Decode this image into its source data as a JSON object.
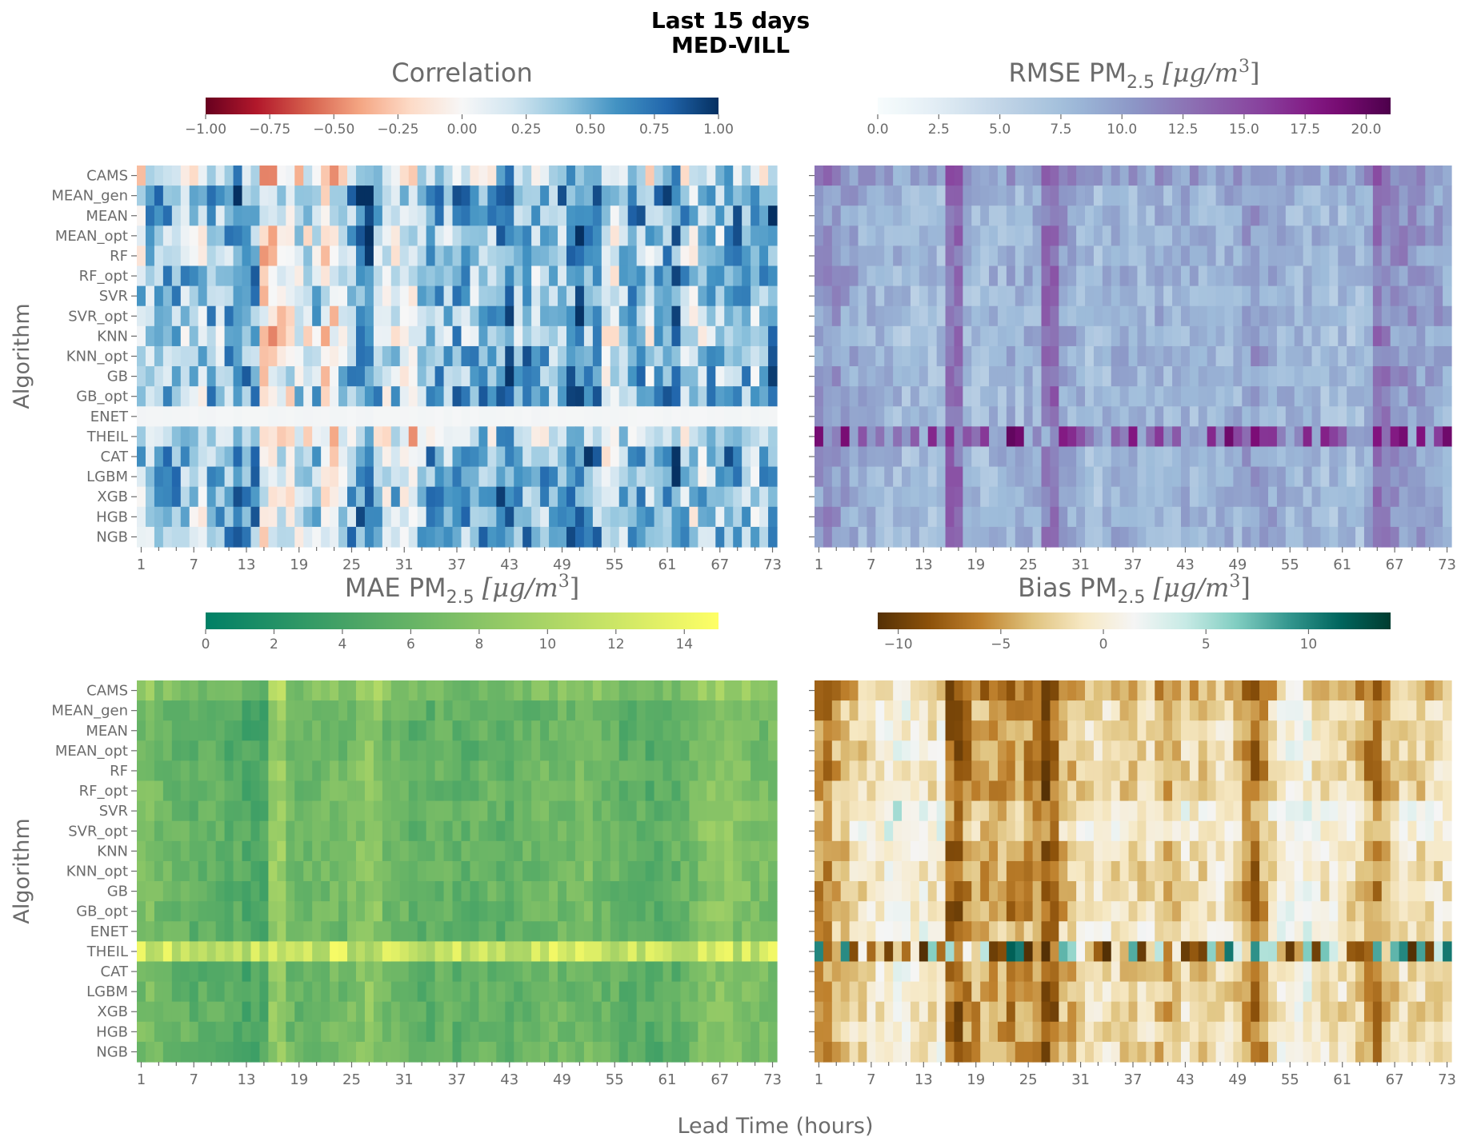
{
  "figure": {
    "title_line1": "Last 15 days",
    "title_line2": "MED-VILL",
    "xlabel": "Lead Time (hours)",
    "ylabel": "Algorithm"
  },
  "chart_data": [
    {
      "type": "heatmap",
      "title": "Correlation",
      "colormap": "RdBu",
      "colorbar_range": [
        -1.0,
        1.0
      ],
      "colorbar_ticks": [
        "−1.00",
        "−0.75",
        "−0.50",
        "−0.25",
        "0.00",
        "0.25",
        "0.50",
        "0.75",
        "1.00"
      ],
      "colorbar_tick_values": [
        -1.0,
        -0.75,
        -0.5,
        -0.25,
        0.0,
        0.25,
        0.5,
        0.75,
        1.0
      ],
      "rows": [
        "CAMS",
        "MEAN_gen",
        "MEAN",
        "MEAN_opt",
        "RF",
        "RF_opt",
        "SVR",
        "SVR_opt",
        "KNN",
        "KNN_opt",
        "GB",
        "GB_opt",
        "ENET",
        "THEIL",
        "CAT",
        "LGBM",
        "XGB",
        "HGB",
        "NGB"
      ],
      "x_ticks": [
        "1",
        "7",
        "13",
        "19",
        "25",
        "31",
        "37",
        "43",
        "49",
        "55",
        "61",
        "67",
        "73"
      ],
      "n_columns": 73,
      "row_means": [
        0.15,
        0.45,
        0.42,
        0.35,
        0.3,
        0.4,
        0.38,
        0.36,
        0.25,
        0.4,
        0.38,
        0.4,
        0.02,
        0.18,
        0.42,
        0.4,
        0.42,
        0.38,
        0.38
      ],
      "column_means": [
        0.25,
        0.35,
        0.45,
        0.4,
        0.5,
        0.35,
        0.3,
        0.2,
        0.4,
        0.35,
        0.45,
        0.65,
        0.55,
        0.5,
        -0.1,
        -0.05,
        0.0,
        0.05,
        0.2,
        0.15,
        0.3,
        -0.05,
        0.0,
        0.2,
        0.45,
        0.6,
        0.7,
        0.35,
        0.2,
        0.25,
        0.15,
        0.05,
        0.3,
        0.45,
        0.4,
        0.3,
        0.55,
        0.45,
        0.35,
        0.5,
        0.4,
        0.55,
        0.65,
        0.4,
        0.5,
        0.3,
        0.4,
        0.35,
        0.45,
        0.55,
        0.7,
        0.6,
        0.5,
        0.1,
        0.05,
        0.4,
        0.45,
        0.5,
        0.3,
        0.4,
        0.55,
        0.65,
        0.35,
        0.2,
        0.25,
        0.4,
        0.35,
        0.5,
        0.55,
        0.4,
        0.3,
        0.35,
        0.6
      ]
    },
    {
      "type": "heatmap",
      "title_main": "RMSE PM",
      "title_sub": "2.5",
      "title_unit": "μg/m",
      "title_exp": "3",
      "colormap": "BuPu",
      "colorbar_range": [
        0.0,
        21.0
      ],
      "colorbar_ticks": [
        "0.0",
        "2.5",
        "5.0",
        "7.5",
        "10.0",
        "12.5",
        "15.0",
        "17.5",
        "20.0"
      ],
      "colorbar_tick_values": [
        0.0,
        2.5,
        5.0,
        7.5,
        10.0,
        12.5,
        15.0,
        17.5,
        20.0
      ],
      "rows": [
        "CAMS",
        "MEAN_gen",
        "MEAN",
        "MEAN_opt",
        "RF",
        "RF_opt",
        "SVR",
        "SVR_opt",
        "KNN",
        "KNN_opt",
        "GB",
        "GB_opt",
        "ENET",
        "THEIL",
        "CAT",
        "LGBM",
        "XGB",
        "HGB",
        "NGB"
      ],
      "x_ticks": [
        "1",
        "7",
        "13",
        "19",
        "25",
        "31",
        "37",
        "43",
        "49",
        "55",
        "61",
        "67",
        "73"
      ],
      "n_columns": 73,
      "row_means": [
        10.5,
        9.0,
        9.0,
        9.0,
        9.0,
        9.0,
        8.8,
        8.8,
        8.6,
        8.8,
        8.8,
        8.8,
        8.5,
        18.5,
        8.8,
        8.8,
        8.8,
        8.8,
        8.8
      ],
      "column_means": [
        10.0,
        10.5,
        10.0,
        9.5,
        9.0,
        8.5,
        8.5,
        8.0,
        8.0,
        8.0,
        7.5,
        7.5,
        7.5,
        7.5,
        7.5,
        13.0,
        13.0,
        8.0,
        7.5,
        7.5,
        8.0,
        8.0,
        8.5,
        8.0,
        8.5,
        8.5,
        12.5,
        13.0,
        9.5,
        9.0,
        8.0,
        7.5,
        7.5,
        8.0,
        8.5,
        8.5,
        8.0,
        8.0,
        8.0,
        8.5,
        8.0,
        8.0,
        8.5,
        8.0,
        8.0,
        8.0,
        8.0,
        8.5,
        8.5,
        9.5,
        10.0,
        9.0,
        9.0,
        8.5,
        8.0,
        8.0,
        8.0,
        8.0,
        7.5,
        7.5,
        7.5,
        7.5,
        7.5,
        9.0,
        12.5,
        11.5,
        10.5,
        10.5,
        10.0,
        10.0,
        9.5,
        9.5,
        9.0
      ]
    },
    {
      "type": "heatmap",
      "title_main": "MAE PM",
      "title_sub": "2.5",
      "title_unit": "μg/m",
      "title_exp": "3",
      "colormap": "summer",
      "colorbar_range": [
        0,
        15
      ],
      "colorbar_ticks": [
        "0",
        "2",
        "4",
        "6",
        "8",
        "10",
        "12",
        "14"
      ],
      "colorbar_tick_values": [
        0,
        2,
        4,
        6,
        8,
        10,
        12,
        14
      ],
      "rows": [
        "CAMS",
        "MEAN_gen",
        "MEAN",
        "MEAN_opt",
        "RF",
        "RF_opt",
        "SVR",
        "SVR_opt",
        "KNN",
        "KNN_opt",
        "GB",
        "GB_opt",
        "ENET",
        "THEIL",
        "CAT",
        "LGBM",
        "XGB",
        "HGB",
        "NGB"
      ],
      "x_ticks": [
        "1",
        "7",
        "13",
        "19",
        "25",
        "31",
        "37",
        "43",
        "49",
        "55",
        "61",
        "67",
        "73"
      ],
      "n_columns": 73,
      "row_means": [
        7.6,
        6.2,
        6.0,
        6.2,
        6.4,
        6.4,
        6.6,
        6.6,
        6.6,
        6.5,
        6.4,
        6.4,
        6.2,
        13.0,
        6.2,
        6.2,
        6.3,
        6.3,
        6.3
      ],
      "column_means": [
        7.5,
        7.8,
        7.0,
        6.8,
        6.5,
        6.5,
        6.0,
        6.0,
        6.5,
        6.0,
        5.5,
        5.5,
        5.0,
        5.0,
        5.0,
        9.0,
        9.5,
        7.0,
        6.5,
        6.5,
        7.0,
        7.0,
        7.5,
        7.0,
        7.5,
        8.0,
        9.0,
        8.5,
        7.0,
        7.0,
        6.5,
        6.0,
        6.0,
        6.0,
        6.5,
        6.5,
        6.0,
        6.0,
        6.0,
        6.5,
        6.5,
        6.0,
        6.0,
        6.5,
        6.5,
        6.5,
        7.0,
        7.0,
        7.0,
        7.0,
        7.5,
        7.5,
        7.0,
        6.5,
        6.5,
        6.0,
        6.0,
        6.0,
        5.5,
        5.5,
        6.0,
        6.0,
        6.5,
        7.0,
        8.0,
        8.5,
        8.5,
        8.5,
        8.0,
        8.0,
        7.5,
        7.5,
        7.5
      ]
    },
    {
      "type": "heatmap",
      "title_main": "Bias PM",
      "title_sub": "2.5",
      "title_unit": "μg/m",
      "title_exp": "3",
      "colormap": "BrBG",
      "colorbar_range": [
        -11,
        14
      ],
      "colorbar_ticks": [
        "−10",
        "−5",
        "0",
        "5",
        "10"
      ],
      "colorbar_tick_values": [
        -10,
        -5,
        0,
        5,
        10
      ],
      "rows": [
        "CAMS",
        "MEAN_gen",
        "MEAN",
        "MEAN_opt",
        "RF",
        "RF_opt",
        "SVR",
        "SVR_opt",
        "KNN",
        "KNN_opt",
        "GB",
        "GB_opt",
        "ENET",
        "THEIL",
        "CAT",
        "LGBM",
        "XGB",
        "HGB",
        "NGB"
      ],
      "x_ticks": [
        "1",
        "7",
        "13",
        "19",
        "25",
        "31",
        "37",
        "43",
        "49",
        "55",
        "61",
        "67",
        "73"
      ],
      "n_columns": 73,
      "row_means": [
        -4.5,
        -2.8,
        -2.6,
        -2.8,
        -3.0,
        -3.0,
        -0.5,
        -1.0,
        -2.5,
        -2.5,
        -2.5,
        -2.5,
        -1.5,
        -1.0,
        -2.6,
        -2.6,
        -2.8,
        -2.6,
        -2.6
      ],
      "column_means": [
        -6.0,
        -6.5,
        -4.5,
        -4.0,
        -3.0,
        -2.5,
        -2.0,
        -1.0,
        0.5,
        0.5,
        0.0,
        -0.5,
        -1.0,
        -1.5,
        -1.0,
        -8.0,
        -8.5,
        -6.5,
        -5.0,
        -5.0,
        -6.0,
        -5.5,
        -6.5,
        -5.5,
        -6.0,
        -7.0,
        -9.0,
        -8.0,
        -4.5,
        -4.0,
        -3.0,
        -2.0,
        -1.5,
        -2.0,
        -2.5,
        -3.5,
        -3.0,
        -2.5,
        -2.5,
        -4.0,
        -4.5,
        -3.0,
        -2.0,
        -2.5,
        -3.0,
        -2.0,
        -1.5,
        -2.5,
        -4.0,
        -6.5,
        -7.5,
        -5.5,
        -3.0,
        -1.0,
        0.5,
        0.5,
        0.0,
        -1.0,
        -1.5,
        -1.5,
        -2.0,
        -2.5,
        -3.5,
        -6.0,
        -6.5,
        -4.5,
        -3.5,
        -2.5,
        -2.0,
        -2.5,
        -2.0,
        -2.0,
        -2.0
      ]
    }
  ]
}
